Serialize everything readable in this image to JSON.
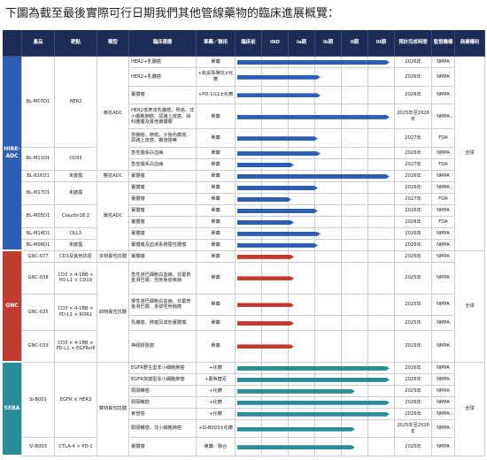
{
  "title": "下圖為截至最後實際可行日期我們其他管線藥物的臨床進展概覽：",
  "header": {
    "product": "產品",
    "target": "靶點",
    "type": "類型",
    "indication": "臨床適應",
    "therapy": "單藥／聯用",
    "stages": [
      "臨床前",
      "IND",
      "Ia期",
      "Ib期",
      "II期",
      "III期"
    ],
    "completion": "預計完成時間",
    "regulator": "監管機構",
    "rights": "商業權利"
  },
  "platforms": [
    {
      "name": "HIRE-ADC",
      "color": "#2c5fb3",
      "rights": "全球",
      "groups": [
        {
          "type": "單抗ADC",
          "products": [
            {
              "name": "BL-M07D1",
              "target": "HER2",
              "indications": [
                {
                  "text": "HER2+乳腺癌",
                  "therapy": "單藥",
                  "progress": 5.8,
                  "completion": "2026年",
                  "regulator": "NMPA"
                },
                {
                  "text": "HER2+乳腺癌",
                  "therapy": "+帕妥珠單抗±化療",
                  "progress": 3.2,
                  "completion": "2026年",
                  "regulator": "NMPA"
                },
                {
                  "text": "實體瘤",
                  "therapy": "+PD-1/L1±化療",
                  "progress": 3.2,
                  "completion": "2026年",
                  "regulator": "NMPA"
                },
                {
                  "text": "HER2低表達乳腺癌、胃癌、非小細胞肺癌、尿路上皮癌、婦科腫瘤及其他實體瘤",
                  "therapy": "單藥",
                  "progress": 5.8,
                  "completion": "2025年至2026年",
                  "regulator": "NMPA"
                },
                {
                  "text": "胃腸癌、肺癌、子宮內膜癌、尿路上皮癌、膽道癌等",
                  "therapy": "單藥",
                  "progress": 3.1,
                  "completion": "2027年",
                  "regulator": "FDA"
                }
              ]
            },
            {
              "name": "BL-M11D1",
              "target": "CD33",
              "indications": [
                {
                  "text": "急性髓系白血病",
                  "therapy": "單藥",
                  "progress": 3.2,
                  "completion": "2026年",
                  "regulator": "NMPA"
                },
                {
                  "text": "急性髓系白血病",
                  "therapy": "單藥",
                  "progress": 2.2,
                  "completion": "2027年",
                  "regulator": "FDA"
                }
              ]
            }
          ]
        },
        {
          "type": "雙抗ADC",
          "products": [
            {
              "name": "BL-B16D1",
              "target": "未披露",
              "indications": [
                {
                  "text": "實體瘤",
                  "therapy": "單藥",
                  "progress": 5.8,
                  "completion": "2026年",
                  "regulator": "NMPA"
                }
              ]
            }
          ]
        },
        {
          "type": "單抗ADC",
          "products": [
            {
              "name": "BL-M17D1",
              "target": "未披露",
              "indications": [
                {
                  "text": "實體瘤",
                  "therapy": "單藥",
                  "progress": 3.1,
                  "completion": "2026年",
                  "regulator": "NMPA"
                },
                {
                  "text": "實體瘤",
                  "therapy": "單藥",
                  "progress": 2.1,
                  "completion": "2027年",
                  "regulator": "FDA"
                }
              ]
            },
            {
              "name": "BL-M05D1",
              "target": "Claudin18.2",
              "indications": [
                {
                  "text": "實體瘤",
                  "therapy": "單藥",
                  "progress": 3.1,
                  "completion": "2026年",
                  "regulator": "NMPA"
                },
                {
                  "text": "實體瘤",
                  "therapy": "單藥",
                  "progress": 2.2,
                  "completion": "2026年",
                  "regulator": "FDA"
                }
              ]
            },
            {
              "name": "BL-M14D1",
              "target": "DLL3",
              "indications": [
                {
                  "text": "實體瘤",
                  "therapy": "單藥",
                  "progress": 3.2,
                  "completion": "2026年",
                  "regulator": "NMPA"
                }
              ]
            },
            {
              "name": "BL-M08D1",
              "target": "未披露",
              "indications": [
                {
                  "text": "實體瘤及血液系統惡性腫瘤",
                  "therapy": "單藥",
                  "progress": 3.1,
                  "completion": "2026年",
                  "regulator": "NMPA"
                }
              ]
            }
          ]
        }
      ]
    },
    {
      "name": "GNC",
      "color": "#c23b30",
      "rights": "全球",
      "groups": [
        {
          "type": "多特異性抗體",
          "products": [
            {
              "name": "GNC-077",
              "target": "CD3及其他抗原",
              "indications": [
                {
                  "text": "實體瘤",
                  "therapy": "單藥",
                  "progress": 2.2,
                  "completion": "2026年",
                  "regulator": "NMPA"
                }
              ]
            }
          ]
        },
        {
          "type": "四特異性抗體",
          "products": [
            {
              "name": "GNC-038",
              "target": "CD3 × 4-1BB × PD-L1 × CD19",
              "indications": [
                {
                  "text": "急性淋巴細胞白血病、非霍奇金淋巴瘤、自身免疫疾病",
                  "therapy": "單藥",
                  "progress": 2.2,
                  "completion": "2025年",
                  "regulator": "NMPA"
                }
              ]
            },
            {
              "name": "GNC-035",
              "target": "CD3 × 4-1BB × PD-L1 × ROR1",
              "indications": [
                {
                  "text": "慢性淋巴細胞白血病、非霍奇金淋巴瘤、多發性骨髓瘤",
                  "therapy": "單藥",
                  "progress": 2.2,
                  "completion": "2025年",
                  "regulator": "NMPA"
                },
                {
                  "text": "乳腺癌、肺癌及其他實體瘤",
                  "therapy": "單藥",
                  "progress": 2.2,
                  "completion": "2025年",
                  "regulator": "NMPA"
                }
              ]
            },
            {
              "name": "GNC-039",
              "target": "CD3 × 4-1BB × PD-L1 × EGFRvIII",
              "indications": [
                {
                  "text": "神經膠質瘤",
                  "therapy": "單藥",
                  "progress": 2.2,
                  "completion": "2025年",
                  "regulator": "NMPA"
                }
              ]
            }
          ]
        }
      ]
    },
    {
      "name": "SEBA",
      "color": "#2b8c9c",
      "rights": "全球",
      "groups": [
        {
          "type": "雙特異性抗體",
          "products": [
            {
              "name": "SI-B001",
              "target": "EGFR × HER3",
              "indications": [
                {
                  "text": "EGFR野生型非小細胞肺癌",
                  "therapy": "+化療",
                  "progress": 5.8,
                  "completion": "2026年",
                  "regulator": "NMPA"
                },
                {
                  "text": "EGFR突變型非小細胞肺癌",
                  "therapy": "+奧希替尼",
                  "progress": 5.8,
                  "completion": "2026年",
                  "regulator": "NMPA"
                },
                {
                  "text": "頭頸鱗癌",
                  "therapy": "+化療",
                  "progress": 4.5,
                  "completion": "2025年",
                  "regulator": "NMPA"
                },
                {
                  "text": "頭頸鱗癌",
                  "therapy": "+化療",
                  "progress": 5.8,
                  "completion": "2026年",
                  "regulator": "NMPA"
                },
                {
                  "text": "食管癌",
                  "therapy": "+化療",
                  "progress": 5.8,
                  "completion": "2026年",
                  "regulator": "NMPA"
                },
                {
                  "text": "頭頸鱗癌、非小細胞肺癌",
                  "therapy": "+SI-B003±化療",
                  "progress": 4.5,
                  "completion": "2025年至2026年",
                  "regulator": "NMPA"
                }
              ]
            },
            {
              "name": "SI-B003",
              "target": "CTLA-4 × PD-1",
              "indications": [
                {
                  "text": "實體瘤",
                  "therapy": "單藥／聯合",
                  "progress": 4.5,
                  "completion": "2025年",
                  "regulator": "NMPA"
                }
              ]
            }
          ]
        }
      ]
    }
  ]
}
